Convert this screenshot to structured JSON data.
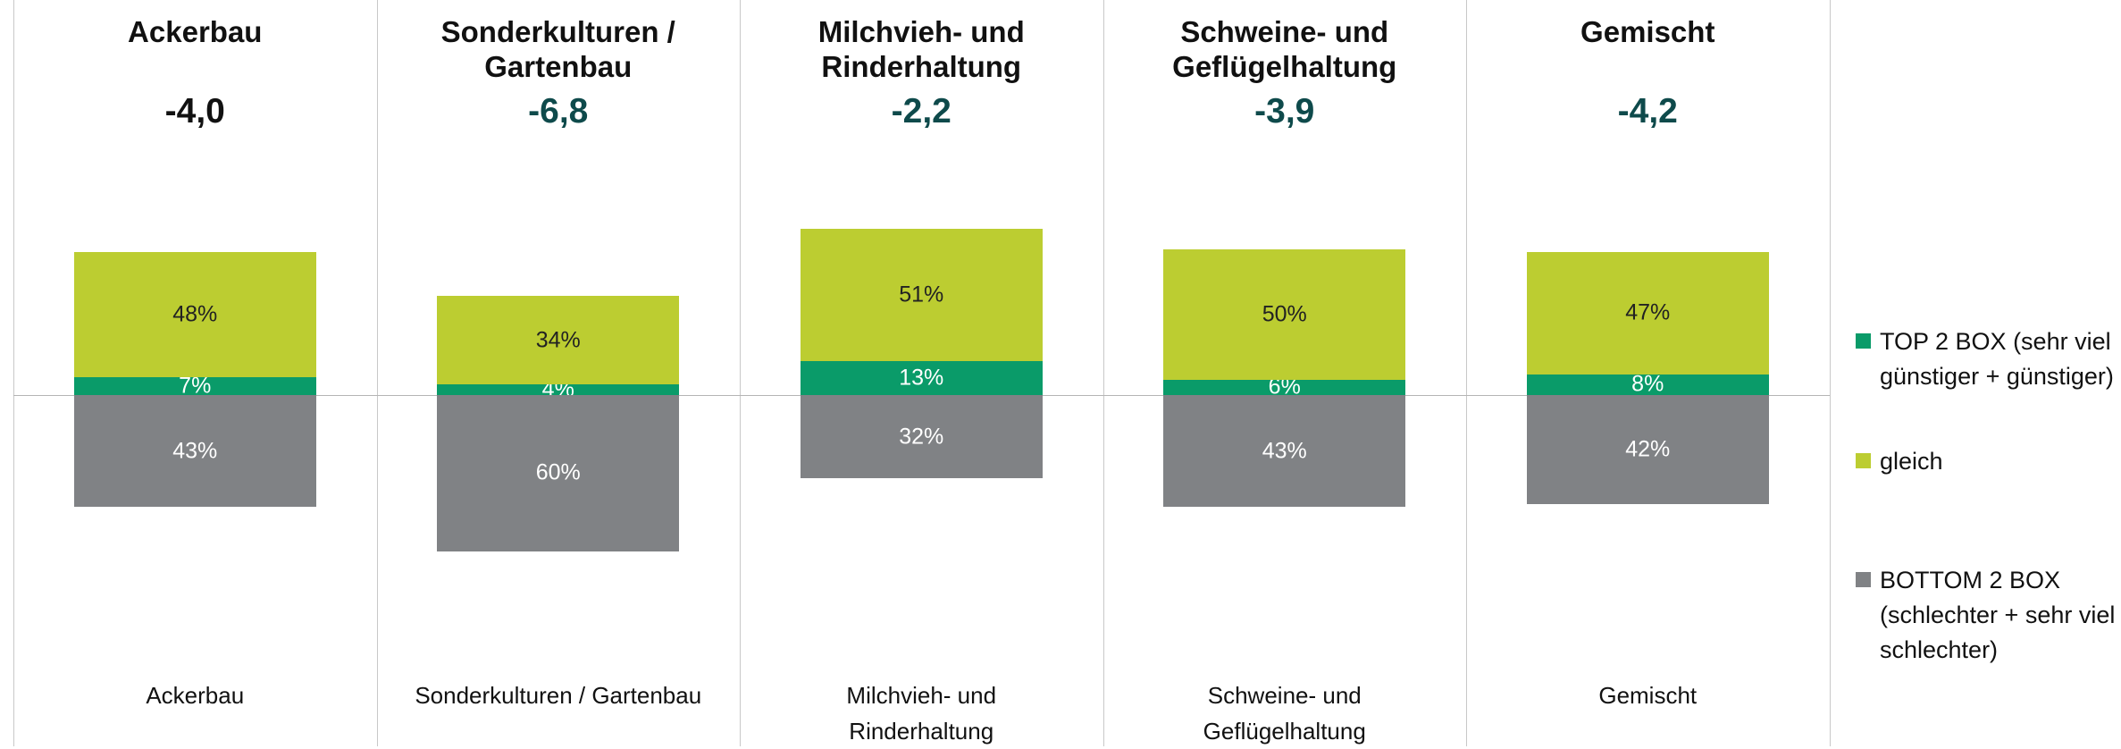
{
  "chart_data": {
    "type": "bar",
    "stacked": true,
    "titles": [
      "Ackerbau",
      "Sonderkulturen / Gartenbau",
      "Milchvieh- und Rinderhaltung",
      "Schweine- und Geflügelhaltung",
      "Gemischt"
    ],
    "scores": [
      -4.0,
      -6.8,
      -2.2,
      -3.9,
      -4.2
    ],
    "score_labels": [
      "-4,0",
      "-6,8",
      "-2,2",
      "-3,9",
      "-4,2"
    ],
    "score_colors": [
      "#111111",
      "#0e4a4b",
      "#0e4a4b",
      "#0e4a4b",
      "#0e4a4b"
    ],
    "categories": [
      "Ackerbau",
      "Sonderkulturen / Gartenbau",
      "Milchvieh- und Rinderhaltung",
      "Schweine- und Geflügelhaltung",
      "Gemischt"
    ],
    "series": [
      {
        "name": "TOP 2 BOX (sehr viel günstiger + günstiger)",
        "color": "#0a9b69",
        "label_color": "#ffffff",
        "side": "above",
        "values": [
          7,
          4,
          13,
          6,
          8
        ],
        "value_labels": [
          "7%",
          "4%",
          "13%",
          "6%",
          "8%"
        ]
      },
      {
        "name": "gleich",
        "color": "#bccd31",
        "label_color": "#222222",
        "side": "above",
        "values": [
          48,
          34,
          51,
          50,
          47
        ],
        "value_labels": [
          "48%",
          "34%",
          "51%",
          "50%",
          "47%"
        ]
      },
      {
        "name": "BOTTOM 2 BOX (schlechter + sehr viel schlechter)",
        "color": "#808285",
        "label_color": "#ffffff",
        "side": "below",
        "values": [
          43,
          60,
          32,
          43,
          42
        ],
        "value_labels": [
          "43%",
          "60%",
          "32%",
          "43%",
          "42%"
        ]
      }
    ],
    "legend": "right"
  }
}
